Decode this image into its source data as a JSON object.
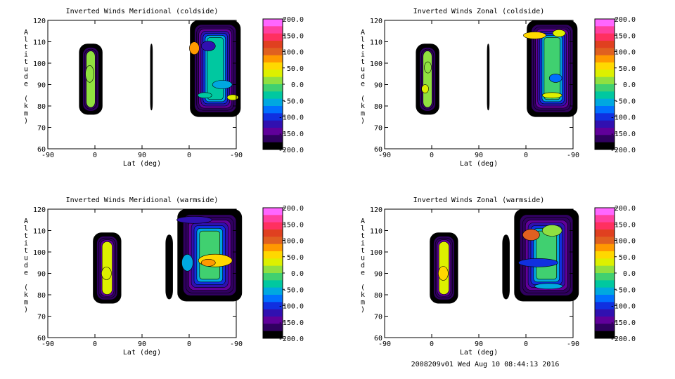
{
  "footer": "2008209v01 Wed Aug 10 08:44:13 2016",
  "colorbar": {
    "labels": [
      "200.0",
      "150.0",
      "100.0",
      "50.0",
      "0.0",
      "-50.0",
      "-100.0",
      "-150.0",
      "-200.0"
    ],
    "colors": [
      "#ff66ff",
      "#ff3fa0",
      "#ff3060",
      "#e04020",
      "#e06020",
      "#ff9900",
      "#ffd800",
      "#ddf000",
      "#90e040",
      "#40d070",
      "#00c8a0",
      "#00a8e0",
      "#0070ff",
      "#1030e0",
      "#3010b0",
      "#60009a",
      "#300060",
      "#000000"
    ]
  },
  "chart_data": [
    {
      "type": "heatmap",
      "title": "Inverted Winds Meridional (coldside)",
      "xlabel": "Lat (deg)",
      "ylabel": "Altitude (km)",
      "x_ticks": [
        "-90",
        "0",
        "90",
        "0",
        "-90"
      ],
      "y_ticks": [
        "120",
        "110",
        "100",
        "90",
        "80",
        "70",
        "60"
      ],
      "ylim": [
        60,
        120
      ],
      "zlim": [
        -200,
        200
      ],
      "blobs": [
        {
          "lat_range": [
            "-90",
            "0"
          ],
          "x_range": [
            -45,
            -12
          ],
          "y_range": [
            76,
            109
          ],
          "peak": "0 to 25"
        },
        {
          "lat_range": [
            "-90",
            "0"
          ],
          "x_range": [
            57,
            60
          ],
          "y_range": [
            78,
            109
          ],
          "peak": "-200"
        },
        {
          "lat_range": [
            "0",
            "-90"
          ],
          "x_range": [
            114,
            186
          ],
          "y_range": [
            75,
            120
          ],
          "peak": "-100 to 100"
        }
      ]
    },
    {
      "type": "heatmap",
      "title": "Inverted Winds Zonal (coldside)",
      "xlabel": "Lat (deg)",
      "ylabel": "Altitude (km)",
      "x_ticks": [
        "-90",
        "0",
        "90",
        "0",
        "-90"
      ],
      "y_ticks": [
        "120",
        "110",
        "100",
        "90",
        "80",
        "70",
        "60"
      ],
      "ylim": [
        60,
        120
      ],
      "zlim": [
        -200,
        200
      ],
      "blobs": [
        {
          "lat_range": [
            "-90",
            "0"
          ],
          "x_range": [
            -45,
            -12
          ],
          "y_range": [
            76,
            109
          ],
          "peak": "0 to 50"
        },
        {
          "lat_range": [
            "-90",
            "0"
          ],
          "x_range": [
            57,
            60
          ],
          "y_range": [
            78,
            109
          ],
          "peak": "-200"
        },
        {
          "lat_range": [
            "0",
            "-90"
          ],
          "x_range": [
            114,
            186
          ],
          "y_range": [
            75,
            120
          ],
          "peak": "-50 to 75"
        }
      ]
    },
    {
      "type": "heatmap",
      "title": "Inverted Winds Meridional (warmside)",
      "xlabel": "Lat (deg)",
      "ylabel": "Altitude (km)",
      "x_ticks": [
        "-90",
        "0",
        "90",
        "0",
        "-90"
      ],
      "y_ticks": [
        "120",
        "110",
        "100",
        "90",
        "80",
        "70",
        "60"
      ],
      "ylim": [
        60,
        120
      ],
      "zlim": [
        -200,
        200
      ],
      "blobs": [
        {
          "lat_range": [
            "-90",
            "0"
          ],
          "x_range": [
            -25,
            15
          ],
          "y_range": [
            76,
            109
          ],
          "peak": "0 to 50"
        },
        {
          "lat_range": [
            "-90",
            "0"
          ],
          "x_range": [
            79,
            89
          ],
          "y_range": [
            78,
            108
          ],
          "peak": "-200"
        },
        {
          "lat_range": [
            "0",
            "-90"
          ],
          "x_range": [
            96,
            188
          ],
          "y_range": [
            77,
            120
          ],
          "peak": "-150 to 75"
        }
      ]
    },
    {
      "type": "heatmap",
      "title": "Inverted Winds Zonal (warmside)",
      "xlabel": "Lat (deg)",
      "ylabel": "Altitude (km)",
      "x_ticks": [
        "-90",
        "0",
        "90",
        "0",
        "-90"
      ],
      "y_ticks": [
        "120",
        "110",
        "100",
        "90",
        "80",
        "70",
        "60"
      ],
      "ylim": [
        60,
        120
      ],
      "zlim": [
        -200,
        200
      ],
      "blobs": [
        {
          "lat_range": [
            "-90",
            "0"
          ],
          "x_range": [
            -25,
            15
          ],
          "y_range": [
            76,
            109
          ],
          "peak": "0 to 75"
        },
        {
          "lat_range": [
            "-90",
            "0"
          ],
          "x_range": [
            79,
            89
          ],
          "y_range": [
            78,
            108
          ],
          "peak": "-200"
        },
        {
          "lat_range": [
            "0",
            "-90"
          ],
          "x_range": [
            96,
            188
          ],
          "y_range": [
            77,
            120
          ],
          "peak": "-100 to 100"
        }
      ]
    }
  ]
}
